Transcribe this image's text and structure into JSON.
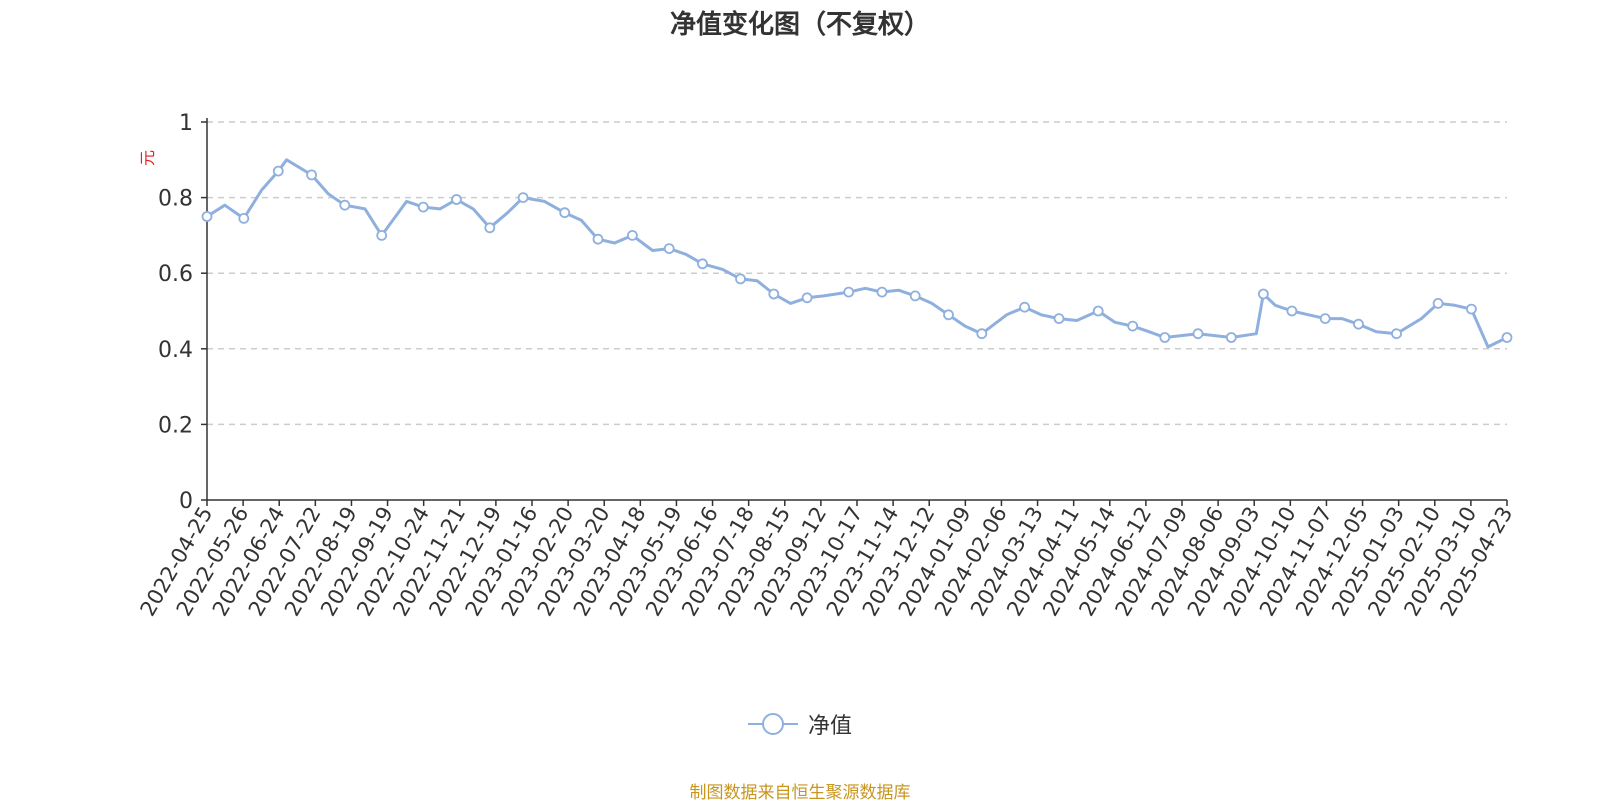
{
  "chart_data": {
    "type": "line",
    "title": "净值变化图（不复权）",
    "ylabel": "元",
    "ylim": [
      0,
      1
    ],
    "yticks": [
      "0",
      "0.2",
      "0.4",
      "0.6",
      "0.8",
      "1"
    ],
    "grid": true,
    "legend_position": "bottom-center",
    "x_tick_labels": [
      "2022-04-25",
      "2022-05-26",
      "2022-06-24",
      "2022-07-22",
      "2022-08-19",
      "2022-09-19",
      "2022-10-24",
      "2022-11-21",
      "2022-12-19",
      "2023-01-16",
      "2023-02-20",
      "2023-03-20",
      "2023-04-18",
      "2023-05-19",
      "2023-06-16",
      "2023-07-18",
      "2023-08-15",
      "2023-09-12",
      "2023-10-17",
      "2023-11-14",
      "2023-12-12",
      "2024-01-09",
      "2024-02-06",
      "2024-03-13",
      "2024-04-11",
      "2024-05-14",
      "2024-06-12",
      "2024-07-09",
      "2024-08-06",
      "2024-09-03",
      "2024-10-10",
      "2024-11-07",
      "2024-12-05",
      "2025-01-03",
      "2025-02-10",
      "2025-03-10",
      "2025-04-23"
    ],
    "series": [
      {
        "name": "净值",
        "color": "#8fb0de",
        "x": [
          "2022-04-25",
          "2022-05-10",
          "2022-05-26",
          "2022-06-10",
          "2022-06-24",
          "2022-07-01",
          "2022-07-22",
          "2022-08-05",
          "2022-08-19",
          "2022-09-05",
          "2022-09-19",
          "2022-10-10",
          "2022-10-24",
          "2022-11-07",
          "2022-11-21",
          "2022-12-05",
          "2022-12-19",
          "2023-01-03",
          "2023-01-16",
          "2023-02-03",
          "2023-02-20",
          "2023-03-06",
          "2023-03-20",
          "2023-04-03",
          "2023-04-18",
          "2023-05-05",
          "2023-05-19",
          "2023-06-02",
          "2023-06-16",
          "2023-07-03",
          "2023-07-18",
          "2023-08-01",
          "2023-08-15",
          "2023-08-29",
          "2023-09-12",
          "2023-09-26",
          "2023-10-17",
          "2023-10-31",
          "2023-11-14",
          "2023-11-28",
          "2023-12-12",
          "2023-12-26",
          "2024-01-09",
          "2024-01-23",
          "2024-02-06",
          "2024-02-27",
          "2024-03-13",
          "2024-03-27",
          "2024-04-11",
          "2024-04-26",
          "2024-05-14",
          "2024-05-28",
          "2024-06-12",
          "2024-06-26",
          "2024-07-09",
          "2024-07-23",
          "2024-08-06",
          "2024-08-20",
          "2024-09-03",
          "2024-09-24",
          "2024-09-30",
          "2024-10-10",
          "2024-10-24",
          "2024-11-07",
          "2024-11-21",
          "2024-12-05",
          "2024-12-19",
          "2025-01-03",
          "2025-01-20",
          "2025-02-10",
          "2025-02-24",
          "2025-03-10",
          "2025-03-24",
          "2025-04-07",
          "2025-04-23"
        ],
        "values": [
          0.75,
          0.78,
          0.745,
          0.82,
          0.87,
          0.9,
          0.86,
          0.81,
          0.78,
          0.77,
          0.7,
          0.79,
          0.775,
          0.77,
          0.795,
          0.77,
          0.72,
          0.76,
          0.8,
          0.79,
          0.76,
          0.74,
          0.69,
          0.68,
          0.7,
          0.66,
          0.665,
          0.65,
          0.625,
          0.61,
          0.585,
          0.58,
          0.545,
          0.52,
          0.535,
          0.54,
          0.55,
          0.56,
          0.55,
          0.555,
          0.54,
          0.52,
          0.49,
          0.46,
          0.44,
          0.49,
          0.51,
          0.49,
          0.48,
          0.475,
          0.5,
          0.47,
          0.46,
          0.445,
          0.43,
          0.435,
          0.44,
          0.435,
          0.43,
          0.44,
          0.545,
          0.515,
          0.5,
          0.49,
          0.48,
          0.48,
          0.465,
          0.445,
          0.44,
          0.48,
          0.52,
          0.515,
          0.505,
          0.405,
          0.43
        ]
      }
    ]
  },
  "legend": {
    "label": "净值"
  },
  "source": "制图数据来自恒生聚源数据库"
}
